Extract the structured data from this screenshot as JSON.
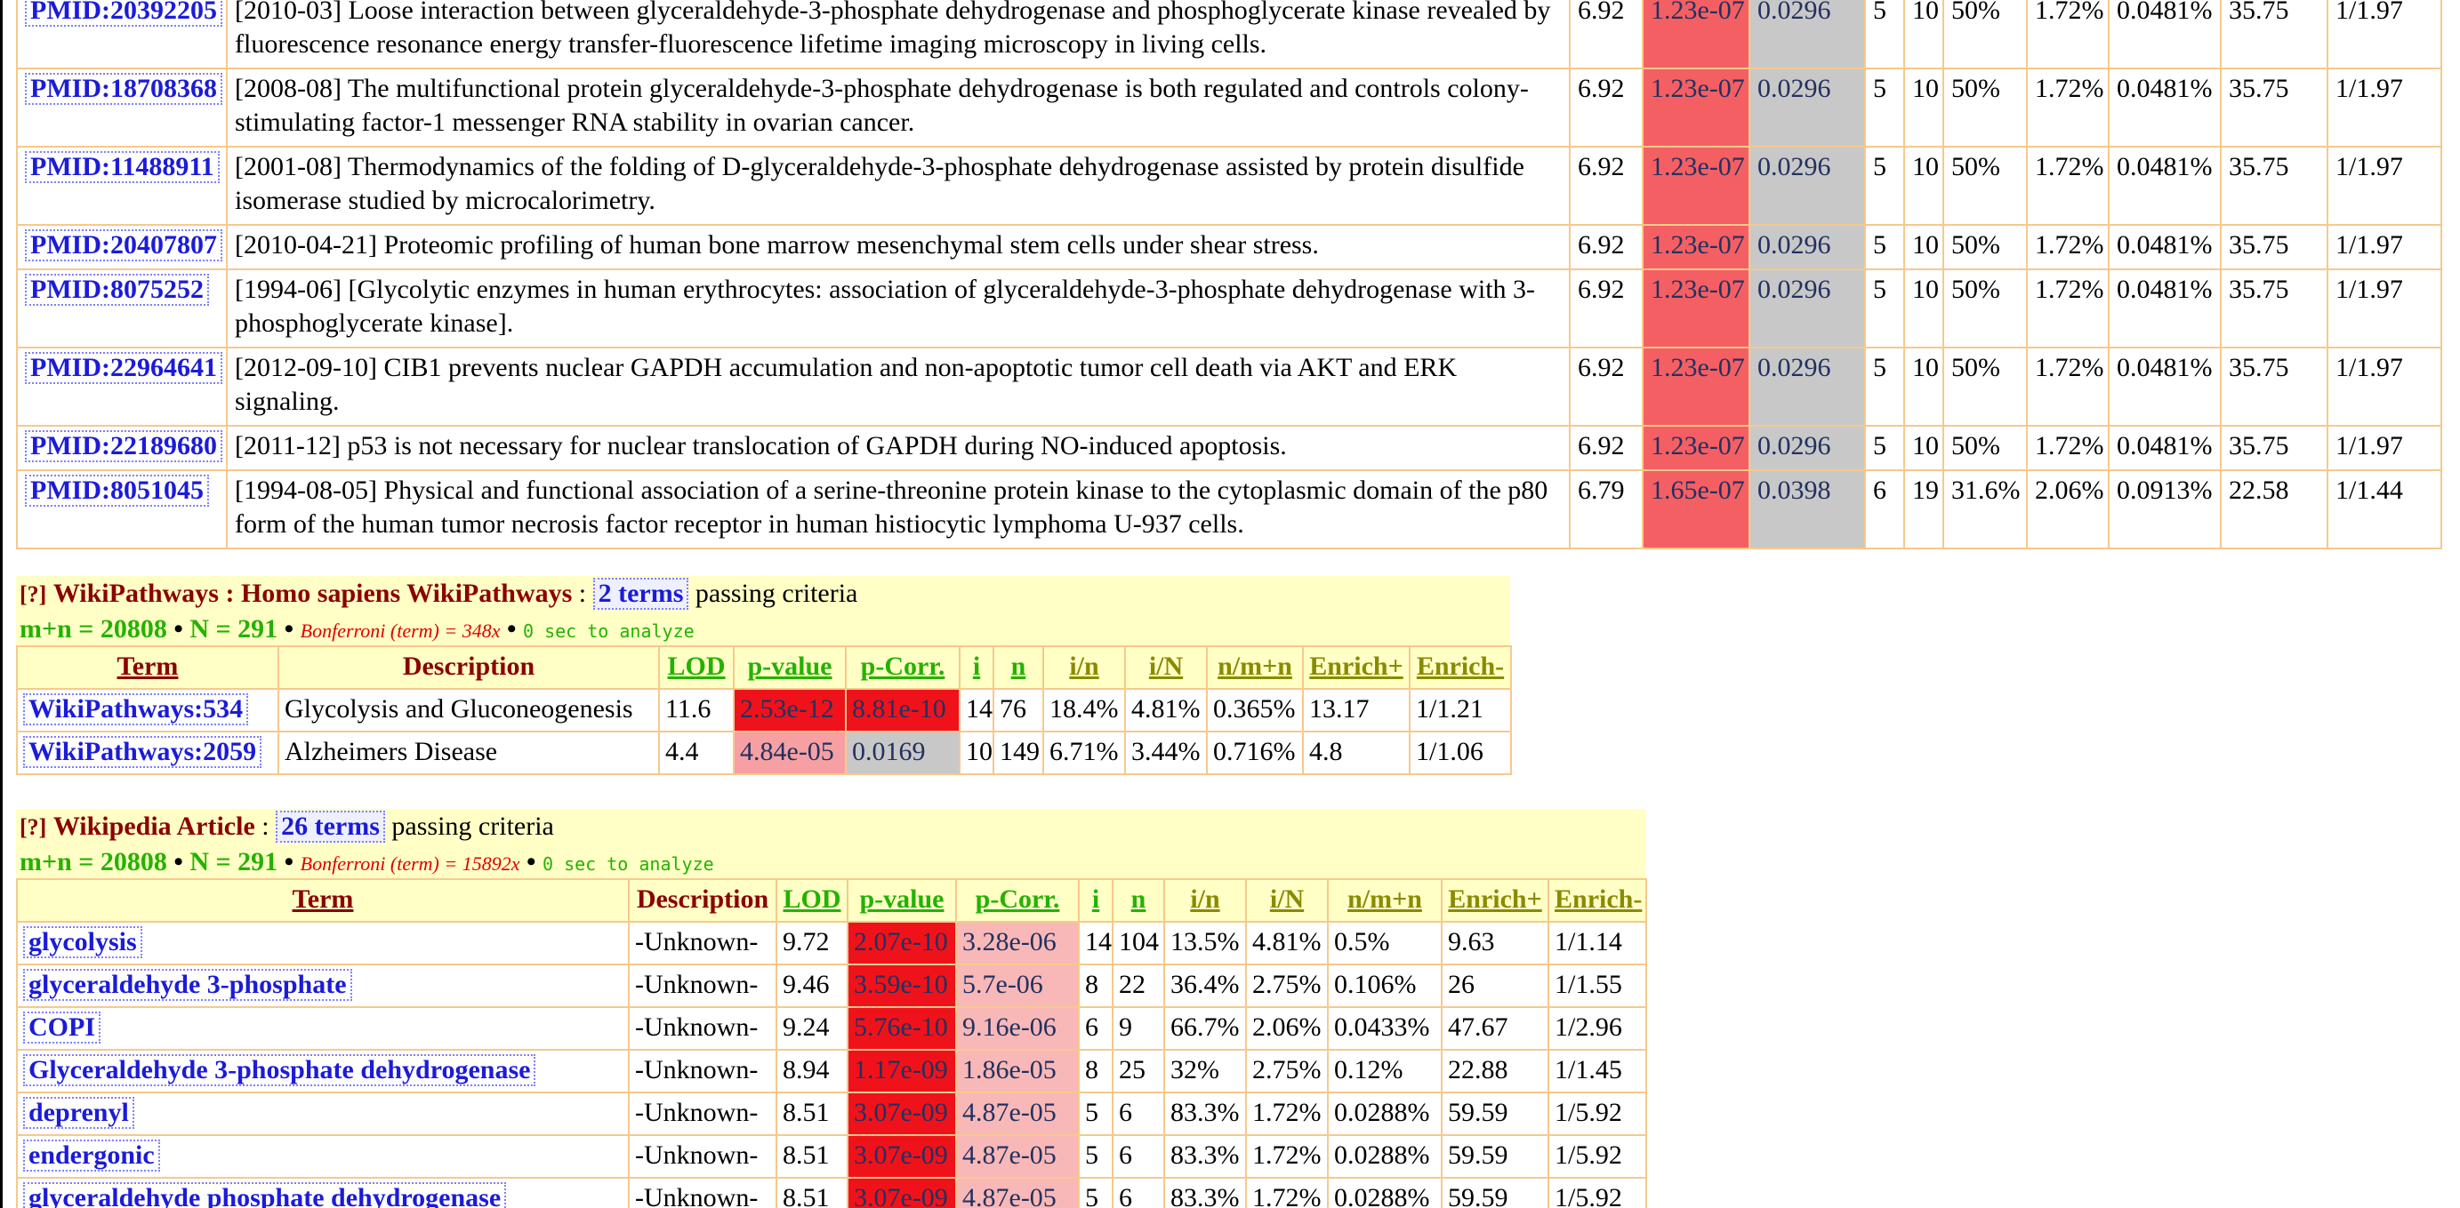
{
  "pubmed_rows": [
    {
      "id": "PMID:20392205",
      "desc": "[2010-03] Loose interaction between glyceraldehyde-3-phosphate dehydrogenase and phosphoglycerate kinase revealed by fluorescence resonance energy transfer-fluorescence lifetime imaging microscopy in living cells.",
      "lod": "6.92",
      "pvalue": "1.23e-07",
      "pcorr": "0.0296",
      "i": "5",
      "n": "10",
      "i_n": "50%",
      "i_N": "1.72%",
      "n_mn": "0.0481%",
      "enrich_plus": "35.75",
      "enrich_minus": "1/1.97"
    },
    {
      "id": "PMID:18708368",
      "desc": "[2008-08] The multifunctional protein glyceraldehyde-3-phosphate dehydrogenase is both regulated and controls colony-stimulating factor-1 messenger RNA stability in ovarian cancer.",
      "lod": "6.92",
      "pvalue": "1.23e-07",
      "pcorr": "0.0296",
      "i": "5",
      "n": "10",
      "i_n": "50%",
      "i_N": "1.72%",
      "n_mn": "0.0481%",
      "enrich_plus": "35.75",
      "enrich_minus": "1/1.97"
    },
    {
      "id": "PMID:11488911",
      "desc": "[2001-08] Thermodynamics of the folding of D-glyceraldehyde-3-phosphate dehydrogenase assisted by protein disulfide isomerase studied by microcalorimetry.",
      "lod": "6.92",
      "pvalue": "1.23e-07",
      "pcorr": "0.0296",
      "i": "5",
      "n": "10",
      "i_n": "50%",
      "i_N": "1.72%",
      "n_mn": "0.0481%",
      "enrich_plus": "35.75",
      "enrich_minus": "1/1.97"
    },
    {
      "id": "PMID:20407807",
      "desc": "[2010-04-21] Proteomic profiling of human bone marrow mesenchymal stem cells under shear stress.",
      "lod": "6.92",
      "pvalue": "1.23e-07",
      "pcorr": "0.0296",
      "i": "5",
      "n": "10",
      "i_n": "50%",
      "i_N": "1.72%",
      "n_mn": "0.0481%",
      "enrich_plus": "35.75",
      "enrich_minus": "1/1.97"
    },
    {
      "id": "PMID:8075252",
      "desc": "[1994-06] [Glycolytic enzymes in human erythrocytes: association of glyceraldehyde-3-phosphate dehydrogenase with 3-phosphoglycerate kinase].",
      "lod": "6.92",
      "pvalue": "1.23e-07",
      "pcorr": "0.0296",
      "i": "5",
      "n": "10",
      "i_n": "50%",
      "i_N": "1.72%",
      "n_mn": "0.0481%",
      "enrich_plus": "35.75",
      "enrich_minus": "1/1.97"
    },
    {
      "id": "PMID:22964641",
      "desc": "[2012-09-10] CIB1 prevents nuclear GAPDH accumulation and non-apoptotic tumor cell death via AKT and ERK signaling.",
      "lod": "6.92",
      "pvalue": "1.23e-07",
      "pcorr": "0.0296",
      "i": "5",
      "n": "10",
      "i_n": "50%",
      "i_N": "1.72%",
      "n_mn": "0.0481%",
      "enrich_plus": "35.75",
      "enrich_minus": "1/1.97"
    },
    {
      "id": "PMID:22189680",
      "desc": "[2011-12] p53 is not necessary for nuclear translocation of GAPDH during NO-induced apoptosis.",
      "lod": "6.92",
      "pvalue": "1.23e-07",
      "pcorr": "0.0296",
      "i": "5",
      "n": "10",
      "i_n": "50%",
      "i_N": "1.72%",
      "n_mn": "0.0481%",
      "enrich_plus": "35.75",
      "enrich_minus": "1/1.97"
    },
    {
      "id": "PMID:8051045",
      "desc": "[1994-08-05] Physical and functional association of a serine-threonine protein kinase to the cytoplasmic domain of the p80 form of the human tumor necrosis factor receptor in human histiocytic lymphoma U-937 cells.",
      "lod": "6.79",
      "pvalue": "1.65e-07",
      "pcorr": "0.0398",
      "i": "6",
      "n": "19",
      "i_n": "31.6%",
      "i_N": "2.06%",
      "n_mn": "0.0913%",
      "enrich_plus": "22.58",
      "enrich_minus": "1/1.44"
    }
  ],
  "wikipathways": {
    "qmark": "[?]",
    "title": "WikiPathways : Homo sapiens WikiPathways",
    "colon": ":",
    "terms": "2 terms",
    "passing": "passing criteria",
    "mn": "m+n = 20808",
    "N": "N = 291",
    "bonferroni": "Bonferroni (term) = 348x",
    "time": "0 sec to analyze",
    "headers": {
      "term": "Term",
      "description": "Description",
      "lod": "LOD",
      "pvalue": "p-value",
      "pcorr": "p-Corr.",
      "i": "i",
      "n": "n",
      "i_n": "i/n",
      "i_N": "i/N",
      "n_mn": "n/m+n",
      "enrich_plus": "Enrich+",
      "enrich_minus": "Enrich-"
    },
    "rows": [
      {
        "term": "WikiPathways:534",
        "desc": "Glycolysis and Gluconeogenesis",
        "lod": "11.6",
        "pvalue": "2.53e-12",
        "pcorr": "8.81e-10",
        "i": "14",
        "n": "76",
        "i_n": "18.4%",
        "i_N": "4.81%",
        "n_mn": "0.365%",
        "enrich_plus": "13.17",
        "enrich_minus": "1/1.21"
      },
      {
        "term": "WikiPathways:2059",
        "desc": "Alzheimers Disease",
        "lod": "4.4",
        "pvalue": "4.84e-05",
        "pcorr": "0.0169",
        "i": "10",
        "n": "149",
        "i_n": "6.71%",
        "i_N": "3.44%",
        "n_mn": "0.716%",
        "enrich_plus": "4.8",
        "enrich_minus": "1/1.06"
      }
    ]
  },
  "wikipedia": {
    "qmark": "[?]",
    "title": "Wikipedia Article",
    "colon": ":",
    "terms": "26 terms",
    "passing": "passing criteria",
    "mn": "m+n = 20808",
    "N": "N = 291",
    "bonferroni": "Bonferroni (term) = 15892x",
    "time": "0 sec to analyze",
    "headers": {
      "term": "Term",
      "description": "Description",
      "lod": "LOD",
      "pvalue": "p-value",
      "pcorr": "p-Corr.",
      "i": "i",
      "n": "n",
      "i_n": "i/n",
      "i_N": "i/N",
      "n_mn": "n/m+n",
      "enrich_plus": "Enrich+",
      "enrich_minus": "Enrich-"
    },
    "rows": [
      {
        "term": "glycolysis",
        "desc": "-Unknown-",
        "lod": "9.72",
        "pvalue": "2.07e-10",
        "pcorr": "3.28e-06",
        "i": "14",
        "n": "104",
        "i_n": "13.5%",
        "i_N": "4.81%",
        "n_mn": "0.5%",
        "enrich_plus": "9.63",
        "enrich_minus": "1/1.14"
      },
      {
        "term": "glyceraldehyde 3-phosphate",
        "desc": "-Unknown-",
        "lod": "9.46",
        "pvalue": "3.59e-10",
        "pcorr": "5.7e-06",
        "i": "8",
        "n": "22",
        "i_n": "36.4%",
        "i_N": "2.75%",
        "n_mn": "0.106%",
        "enrich_plus": "26",
        "enrich_minus": "1/1.55"
      },
      {
        "term": "COPI",
        "desc": "-Unknown-",
        "lod": "9.24",
        "pvalue": "5.76e-10",
        "pcorr": "9.16e-06",
        "i": "6",
        "n": "9",
        "i_n": "66.7%",
        "i_N": "2.06%",
        "n_mn": "0.0433%",
        "enrich_plus": "47.67",
        "enrich_minus": "1/2.96"
      },
      {
        "term": "Glyceraldehyde 3-phosphate dehydrogenase",
        "desc": "-Unknown-",
        "lod": "8.94",
        "pvalue": "1.17e-09",
        "pcorr": "1.86e-05",
        "i": "8",
        "n": "25",
        "i_n": "32%",
        "i_N": "2.75%",
        "n_mn": "0.12%",
        "enrich_plus": "22.88",
        "enrich_minus": "1/1.45"
      },
      {
        "term": "deprenyl",
        "desc": "-Unknown-",
        "lod": "8.51",
        "pvalue": "3.07e-09",
        "pcorr": "4.87e-05",
        "i": "5",
        "n": "6",
        "i_n": "83.3%",
        "i_N": "1.72%",
        "n_mn": "0.0288%",
        "enrich_plus": "59.59",
        "enrich_minus": "1/5.92"
      },
      {
        "term": "endergonic",
        "desc": "-Unknown-",
        "lod": "8.51",
        "pvalue": "3.07e-09",
        "pcorr": "4.87e-05",
        "i": "5",
        "n": "6",
        "i_n": "83.3%",
        "i_N": "1.72%",
        "n_mn": "0.0288%",
        "enrich_plus": "59.59",
        "enrich_minus": "1/5.92"
      },
      {
        "term": "glyceraldehyde phosphate dehydrogenase",
        "desc": "-Unknown-",
        "lod": "8.51",
        "pvalue": "3.07e-09",
        "pcorr": "4.87e-05",
        "i": "5",
        "n": "6",
        "i_n": "83.3%",
        "i_N": "1.72%",
        "n_mn": "0.0288%",
        "enrich_plus": "59.59",
        "enrich_minus": "1/5.92"
      }
    ]
  },
  "colors": {
    "pvalue_strong": "#f0121a",
    "pvalue_medium": "#f45f63",
    "pvalue_weak": "#f6a0a3",
    "pcorr_insignificant": "#c8c8c8",
    "header_bg": "#ffffc6",
    "border": "#f6c98c",
    "link": "#1b1bd9",
    "section_title": "#8b0000",
    "stats_green": "#24b200"
  }
}
